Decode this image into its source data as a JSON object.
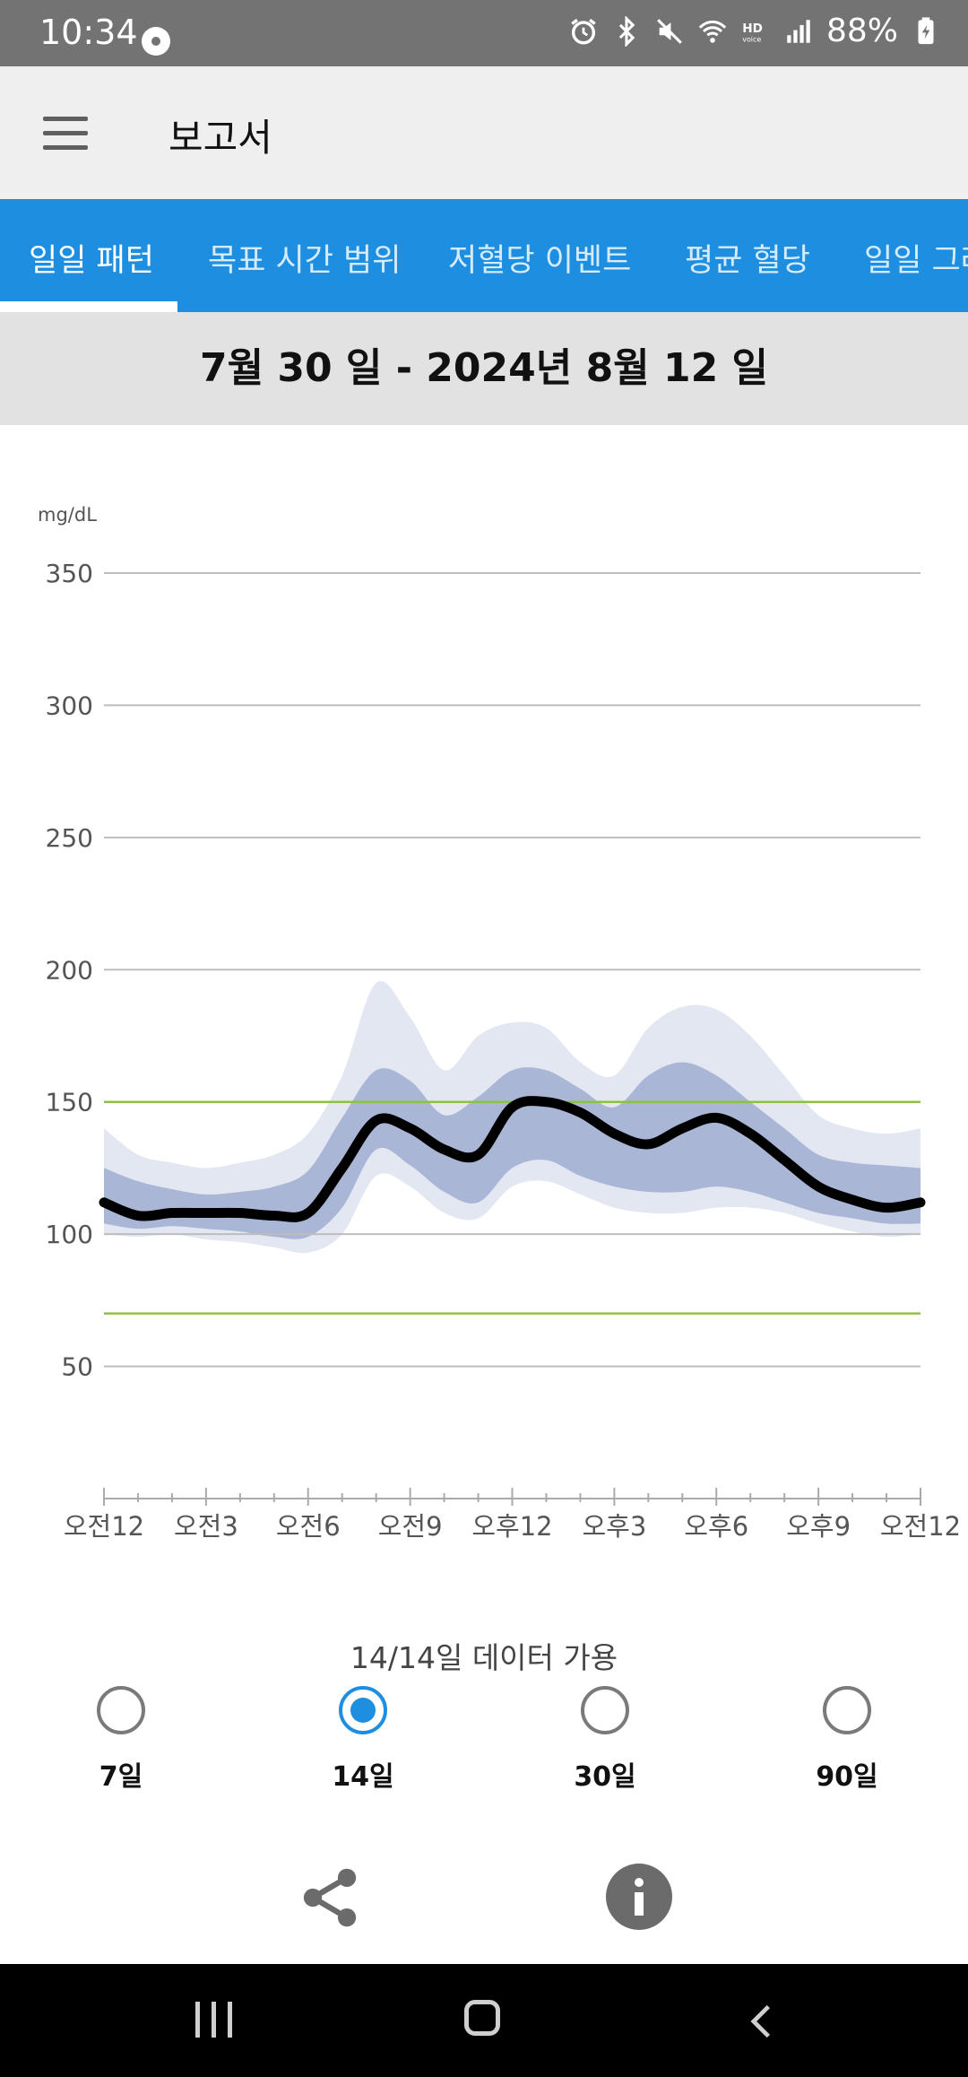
{
  "status_bar": {
    "time": "10:34",
    "battery": "88%",
    "icons": [
      "media-icon",
      "alarm-icon",
      "bluetooth-icon",
      "mute-icon",
      "wifi-icon",
      "hd-voice-icon",
      "signal-icon",
      "battery-charging-icon"
    ]
  },
  "app_bar": {
    "title": "보고서",
    "menu_icon": "hamburger-menu-icon"
  },
  "tabs": [
    {
      "label": "일일 패턴",
      "active": true
    },
    {
      "label": "목표 시간 범위",
      "active": false
    },
    {
      "label": "저혈당 이벤트",
      "active": false
    },
    {
      "label": "평균 혈당",
      "active": false
    },
    {
      "label": "일일 그래프",
      "active": false
    }
  ],
  "date_range": "7월 30 일 - 2024년 8월 12 일",
  "chart_data": {
    "type": "line",
    "title": "",
    "ylabel": "mg/dL",
    "xlabel": "",
    "ylim": [
      0,
      350
    ],
    "y_ticks": [
      50,
      100,
      150,
      200,
      250,
      300,
      350
    ],
    "x_ticks": [
      "오전12",
      "오전3",
      "오전6",
      "오전9",
      "오후12",
      "오후3",
      "오후6",
      "오후9",
      "오전12"
    ],
    "x_hours": [
      0,
      1,
      2,
      3,
      4,
      5,
      6,
      7,
      8,
      9,
      10,
      11,
      12,
      13,
      14,
      15,
      16,
      17,
      18,
      19,
      20,
      21,
      22,
      23,
      24
    ],
    "target_range": [
      70,
      150
    ],
    "target_color": "#8dc04a",
    "series": [
      {
        "name": "",
        "role": "median",
        "color": "#000000",
        "values": [
          112,
          107,
          108,
          108,
          108,
          107,
          108,
          125,
          143,
          140,
          132,
          130,
          148,
          150,
          146,
          138,
          134,
          140,
          144,
          138,
          128,
          118,
          113,
          110,
          112
        ]
      },
      {
        "name": "",
        "role": "25th-75th percentile",
        "color": "#a9b6d6",
        "lower": [
          104,
          102,
          103,
          102,
          101,
          99,
          99,
          110,
          132,
          126,
          116,
          112,
          125,
          128,
          122,
          118,
          116,
          116,
          118,
          116,
          112,
          108,
          106,
          104,
          104
        ],
        "upper": [
          125,
          120,
          117,
          115,
          116,
          118,
          124,
          144,
          162,
          158,
          145,
          152,
          162,
          162,
          155,
          148,
          160,
          165,
          160,
          150,
          140,
          130,
          127,
          126,
          125
        ]
      },
      {
        "name": "",
        "role": "10th-90th percentile",
        "color": "#e3e7f2",
        "lower": [
          100,
          99,
          100,
          98,
          97,
          95,
          93,
          100,
          122,
          118,
          108,
          106,
          118,
          120,
          115,
          110,
          108,
          108,
          110,
          110,
          108,
          104,
          101,
          99,
          100
        ],
        "upper": [
          140,
          130,
          127,
          125,
          127,
          130,
          138,
          160,
          195,
          182,
          162,
          175,
          180,
          178,
          165,
          160,
          178,
          186,
          185,
          175,
          160,
          145,
          140,
          138,
          140
        ]
      }
    ],
    "grid": true
  },
  "days_available": "14/14일 데이터 가용",
  "period_options": [
    {
      "label": "7일",
      "selected": false
    },
    {
      "label": "14일",
      "selected": true
    },
    {
      "label": "30일",
      "selected": false
    },
    {
      "label": "90일",
      "selected": false
    }
  ],
  "actions": {
    "share_icon": "share-icon",
    "info_icon": "info-icon"
  },
  "nav_bar": {
    "recent_icon": "recent-apps-icon",
    "home_icon": "home-icon",
    "back_icon": "back-icon"
  },
  "colors": {
    "accent": "#1e8fe0",
    "appbar_bg": "#efefef",
    "date_bg": "#e2e2e2"
  }
}
